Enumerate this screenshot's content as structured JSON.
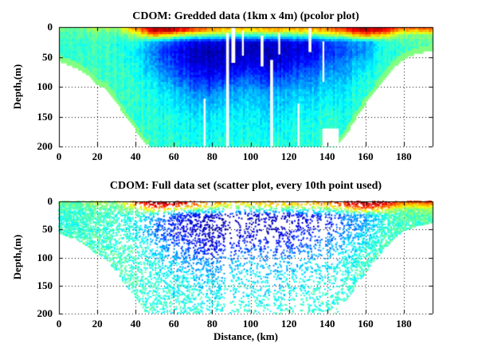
{
  "figure": {
    "background_color": "#ffffff",
    "text_color": "#000000"
  },
  "chart_data": {
    "charts": [
      {
        "type": "pcolor",
        "title": "CDOM: Gredded data (1km x 4m) (pcolor plot)",
        "xlabel": "",
        "ylabel": "Depth,(m)",
        "xlim": [
          0,
          195
        ],
        "ylim": [
          200,
          0
        ],
        "xticks": [
          0,
          20,
          40,
          60,
          80,
          100,
          120,
          140,
          160,
          180
        ],
        "yticks": [
          0,
          50,
          100,
          150,
          200
        ],
        "grid": "dotted-black",
        "colormap": "jet",
        "cell_size": {
          "dx_km": 1,
          "dz_m": 4
        },
        "missing_data_columns": [
          {
            "km": 76,
            "w_km": 1.0,
            "z1": 120,
            "z2": 200
          },
          {
            "km": 88,
            "w_km": 1.5,
            "z1": 10,
            "z2": 200
          },
          {
            "km": 91,
            "w_km": 2.0,
            "z1": 0,
            "z2": 60
          },
          {
            "km": 96,
            "w_km": 1.0,
            "z1": 6,
            "z2": 48
          },
          {
            "km": 106,
            "w_km": 1.5,
            "z1": 14,
            "z2": 66
          },
          {
            "km": 111,
            "w_km": 1.5,
            "z1": 55,
            "z2": 200
          },
          {
            "km": 115,
            "w_km": 1.0,
            "z1": 10,
            "z2": 46
          },
          {
            "km": 125,
            "w_km": 1.0,
            "z1": 128,
            "z2": 200
          },
          {
            "km": 131,
            "w_km": 1.5,
            "z1": 0,
            "z2": 42
          },
          {
            "km": 138,
            "w_km": 1.0,
            "z1": 24,
            "z2": 92
          }
        ],
        "missing_data_block": {
          "km1": 137.5,
          "km2": 146,
          "z1": 170,
          "z2": 200
        }
      },
      {
        "type": "scatter",
        "title": "CDOM: Full data set (scatter plot, every 10th point used)",
        "xlabel": "Distance, (km)",
        "ylabel": "Depth,(m)",
        "xlim": [
          0,
          195
        ],
        "ylim": [
          200,
          0
        ],
        "xticks": [
          0,
          20,
          40,
          60,
          80,
          100,
          120,
          140,
          160,
          180
        ],
        "yticks": [
          0,
          50,
          100,
          150,
          200
        ],
        "grid": "dotted-black",
        "colormap": "jet",
        "marker_px": 2,
        "every_nth_point": 10
      }
    ],
    "field": {
      "description": "CDOM intensity normalized 0-1 on jet colormap (0=dark blue low, 1=dark red high), estimated from pixels",
      "x_km": [
        0,
        10,
        20,
        30,
        40,
        50,
        60,
        70,
        80,
        90,
        100,
        110,
        120,
        130,
        140,
        150,
        160,
        170,
        180,
        195
      ],
      "z_m": [
        0,
        6,
        14,
        25,
        40,
        60,
        85,
        110,
        150,
        200
      ],
      "values": [
        [
          0.5,
          0.48,
          0.55,
          0.52,
          0.8,
          0.97,
          0.94,
          0.85,
          0.74,
          0.7,
          0.68,
          0.74,
          0.7,
          0.72,
          0.76,
          0.9,
          0.97,
          0.94,
          0.8,
          0.86
        ],
        [
          0.47,
          0.46,
          0.5,
          0.48,
          0.68,
          0.95,
          0.88,
          0.78,
          0.68,
          0.64,
          0.62,
          0.68,
          0.64,
          0.66,
          0.7,
          0.84,
          0.94,
          0.88,
          0.68,
          0.72
        ],
        [
          0.45,
          0.44,
          0.46,
          0.45,
          0.52,
          0.7,
          0.58,
          0.5,
          0.46,
          0.42,
          0.4,
          0.44,
          0.42,
          0.45,
          0.5,
          0.58,
          0.74,
          0.62,
          0.5,
          0.52
        ],
        [
          0.43,
          0.42,
          0.44,
          0.42,
          0.42,
          0.3,
          0.18,
          0.12,
          0.09,
          0.08,
          0.08,
          0.1,
          0.1,
          0.12,
          0.18,
          0.26,
          0.3,
          0.4,
          0.45,
          0.47
        ],
        [
          0.42,
          0.42,
          0.43,
          0.42,
          0.38,
          0.24,
          0.13,
          0.08,
          0.05,
          0.05,
          0.06,
          0.06,
          0.08,
          0.1,
          0.15,
          0.22,
          0.28,
          0.4,
          0.44,
          0.45
        ],
        [
          0.42,
          0.43,
          0.43,
          0.42,
          0.4,
          0.27,
          0.16,
          0.1,
          0.06,
          0.08,
          0.1,
          0.08,
          0.12,
          0.16,
          0.22,
          0.28,
          0.34,
          0.42,
          0.44,
          0.44
        ],
        [
          0.43,
          0.43,
          0.44,
          0.43,
          0.42,
          0.34,
          0.24,
          0.17,
          0.13,
          0.17,
          0.21,
          0.17,
          0.21,
          0.25,
          0.29,
          0.33,
          0.4,
          0.44,
          0.44,
          0.44
        ],
        [
          0.44,
          0.44,
          0.44,
          0.43,
          0.43,
          0.39,
          0.33,
          0.28,
          0.25,
          0.29,
          0.31,
          0.29,
          0.31,
          0.33,
          0.35,
          0.38,
          0.43,
          0.44,
          0.44,
          0.44
        ],
        [
          0.44,
          0.44,
          0.44,
          0.44,
          0.43,
          0.41,
          0.39,
          0.37,
          0.35,
          0.37,
          0.37,
          0.35,
          0.37,
          0.39,
          0.41,
          0.41,
          0.43,
          0.44,
          0.44,
          0.44
        ],
        [
          0.44,
          0.44,
          0.44,
          0.44,
          0.44,
          0.42,
          0.41,
          0.41,
          0.39,
          0.41,
          0.41,
          0.41,
          0.41,
          0.42,
          0.43,
          0.43,
          0.44,
          0.44,
          0.44,
          0.44
        ]
      ]
    },
    "bathymetry": {
      "description": "maximum depth of data coverage vs distance, estimated from pixels",
      "x_km": [
        0,
        5,
        10,
        15,
        20,
        25,
        30,
        35,
        40,
        45,
        50,
        55,
        60,
        65,
        70,
        75,
        80,
        85,
        90,
        95,
        100,
        105,
        110,
        115,
        120,
        125,
        130,
        135,
        140,
        145,
        150,
        155,
        160,
        165,
        170,
        175,
        180,
        185,
        190,
        195
      ],
      "max_depth_m": [
        57,
        63,
        70,
        80,
        96,
        104,
        126,
        150,
        172,
        196,
        200,
        200,
        200,
        200,
        200,
        200,
        200,
        200,
        200,
        200,
        200,
        200,
        200,
        200,
        200,
        200,
        200,
        200,
        200,
        200,
        178,
        152,
        128,
        106,
        85,
        66,
        53,
        46,
        42,
        38
      ]
    }
  }
}
